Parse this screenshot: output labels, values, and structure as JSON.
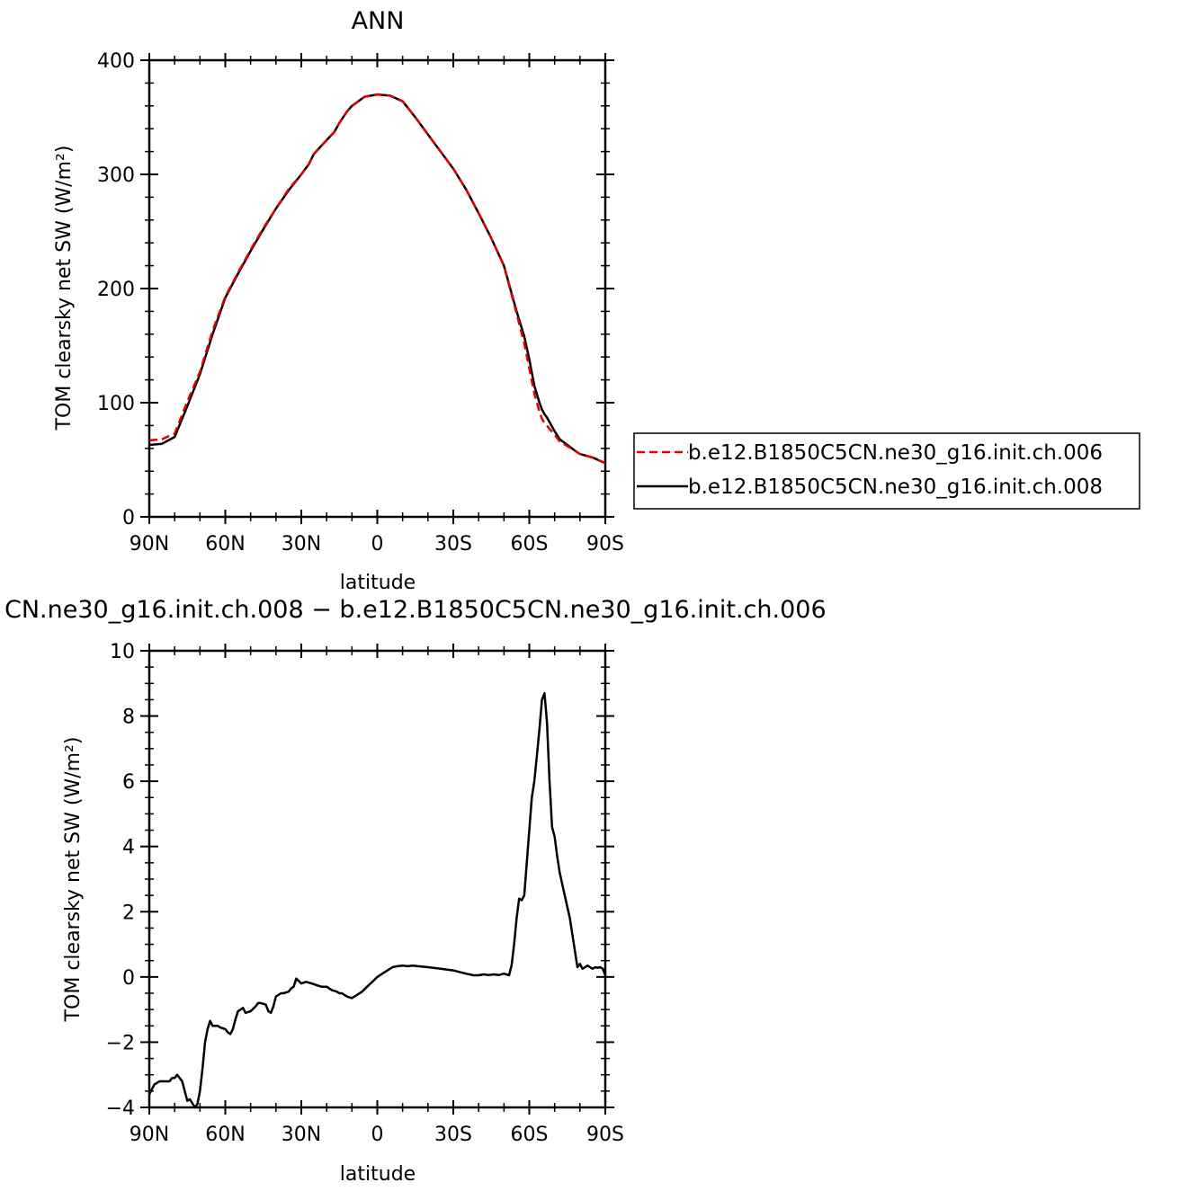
{
  "chart_data": [
    {
      "type": "line",
      "title": "ANN",
      "xlabel": "latitude",
      "ylabel": "TOM clearsky net SW (W/m²)",
      "xlim": [
        90,
        -90
      ],
      "ylim": [
        0,
        400
      ],
      "xticks": [
        {
          "value": 90,
          "label": "90N"
        },
        {
          "value": 60,
          "label": "60N"
        },
        {
          "value": 30,
          "label": "30N"
        },
        {
          "value": 0,
          "label": "0"
        },
        {
          "value": -30,
          "label": "30S"
        },
        {
          "value": -60,
          "label": "60S"
        },
        {
          "value": -90,
          "label": "90S"
        }
      ],
      "yticks": [
        {
          "value": 0,
          "label": "0"
        },
        {
          "value": 100,
          "label": "100"
        },
        {
          "value": 200,
          "label": "200"
        },
        {
          "value": 300,
          "label": "300"
        },
        {
          "value": 400,
          "label": "400"
        }
      ],
      "grid": false,
      "legend_position": "right",
      "series": [
        {
          "name": "b.e12.B1850C5CN.ne30_g16.init.ch.006",
          "color": "#e00000",
          "dash": "dashed",
          "x": [
            90,
            85,
            80,
            75,
            70,
            65,
            60,
            55,
            50,
            45,
            40,
            35,
            30,
            27,
            25,
            20,
            17,
            15,
            12,
            10,
            5,
            0,
            -5,
            -10,
            -15,
            -20,
            -25,
            -30,
            -35,
            -40,
            -45,
            -50,
            -55,
            -58,
            -60,
            -62,
            -64,
            -65,
            -66,
            -67,
            -68,
            -70,
            -72,
            -75,
            -78,
            -80,
            -85,
            -90
          ],
          "y": [
            67,
            68,
            73,
            101,
            127,
            163,
            193,
            214,
            234,
            253,
            270,
            287,
            300,
            309,
            318,
            330,
            337,
            345,
            355,
            360,
            368,
            370,
            369,
            364,
            350,
            335,
            320,
            305,
            287,
            266,
            244,
            220,
            178,
            152,
            130,
            108,
            92,
            86,
            82,
            80,
            77,
            72,
            66,
            62,
            58,
            55,
            52,
            47
          ]
        },
        {
          "name": "b.e12.B1850C5CN.ne30_g16.init.ch.008",
          "color": "#000000",
          "dash": "solid",
          "x": [
            90,
            85,
            80,
            75,
            70,
            65,
            60,
            55,
            50,
            45,
            40,
            35,
            30,
            27,
            25,
            20,
            17,
            15,
            12,
            10,
            5,
            0,
            -5,
            -10,
            -15,
            -20,
            -25,
            -30,
            -35,
            -40,
            -45,
            -50,
            -55,
            -58,
            -60,
            -62,
            -64,
            -65,
            -66,
            -67,
            -68,
            -70,
            -72,
            -75,
            -78,
            -80,
            -85,
            -90
          ],
          "y": [
            63,
            64,
            70,
            97,
            125,
            160,
            192,
            213,
            233,
            252,
            270,
            286,
            300,
            309,
            318,
            330,
            337,
            345,
            355,
            360,
            368,
            370,
            369,
            364,
            350,
            335,
            320,
            305,
            287,
            266,
            244,
            220,
            180,
            158,
            138,
            115,
            100,
            94,
            90,
            87,
            83,
            75,
            68,
            63,
            58,
            55,
            52,
            47
          ]
        }
      ]
    },
    {
      "type": "line",
      "title": "CN.ne30_g16.init.ch.008 − b.e12.B1850C5CN.ne30_g16.init.ch.006",
      "xlabel": "latitude",
      "ylabel": "TOM clearsky net SW (W/m²)",
      "xlim": [
        90,
        -90
      ],
      "ylim": [
        -4,
        10
      ],
      "xticks": [
        {
          "value": 90,
          "label": "90N"
        },
        {
          "value": 60,
          "label": "60N"
        },
        {
          "value": 30,
          "label": "30N"
        },
        {
          "value": 0,
          "label": "0"
        },
        {
          "value": -30,
          "label": "30S"
        },
        {
          "value": -60,
          "label": "60S"
        },
        {
          "value": -90,
          "label": "90S"
        }
      ],
      "yticks": [
        {
          "value": -4,
          "label": "−4"
        },
        {
          "value": -2,
          "label": "−2"
        },
        {
          "value": 0,
          "label": "0"
        },
        {
          "value": 2,
          "label": "2"
        },
        {
          "value": 4,
          "label": "4"
        },
        {
          "value": 6,
          "label": "6"
        },
        {
          "value": 8,
          "label": "8"
        },
        {
          "value": 10,
          "label": "10"
        }
      ],
      "grid": false,
      "series": [
        {
          "name": "",
          "color": "#000000",
          "dash": "solid",
          "x": [
            90,
            88,
            86,
            84,
            82,
            81,
            80,
            79,
            77,
            76,
            75,
            74,
            72,
            71,
            70,
            69,
            68,
            67,
            66,
            65,
            63,
            62,
            60,
            59,
            58,
            57,
            56,
            55,
            53,
            52,
            50,
            48,
            47,
            46,
            44,
            43,
            42,
            41,
            40,
            38,
            37,
            35,
            34,
            33,
            32,
            30,
            28,
            26,
            24,
            22,
            20,
            18,
            16,
            15,
            14,
            12,
            10,
            8,
            6,
            4,
            2,
            0,
            -2,
            -4,
            -6,
            -8,
            -10,
            -12,
            -14,
            -16,
            -20,
            -25,
            -30,
            -35,
            -38,
            -40,
            -42,
            -44,
            -46,
            -48,
            -50,
            -52,
            -53,
            -54,
            -55,
            -56,
            -57,
            -58,
            -59,
            -60,
            -61,
            -62,
            -63,
            -64,
            -65,
            -66,
            -67,
            -68,
            -69,
            -70,
            -71,
            -72,
            -74,
            -76,
            -78,
            -79,
            -80,
            -81,
            -82,
            -83,
            -84,
            -85,
            -86,
            -87,
            -88,
            -89,
            -90
          ],
          "y": [
            -3.6,
            -3.3,
            -3.2,
            -3.2,
            -3.2,
            -3.1,
            -3.1,
            -3.0,
            -3.2,
            -3.5,
            -3.8,
            -3.75,
            -4.0,
            -3.9,
            -3.5,
            -2.8,
            -2.0,
            -1.6,
            -1.35,
            -1.5,
            -1.5,
            -1.55,
            -1.6,
            -1.7,
            -1.75,
            -1.6,
            -1.3,
            -1.05,
            -0.95,
            -1.1,
            -1.05,
            -0.9,
            -0.8,
            -0.8,
            -0.85,
            -1.05,
            -1.1,
            -0.9,
            -0.6,
            -0.5,
            -0.5,
            -0.45,
            -0.35,
            -0.3,
            -0.05,
            -0.2,
            -0.15,
            -0.2,
            -0.25,
            -0.3,
            -0.3,
            -0.4,
            -0.45,
            -0.5,
            -0.5,
            -0.6,
            -0.65,
            -0.55,
            -0.45,
            -0.3,
            -0.15,
            0.0,
            0.1,
            0.2,
            0.3,
            0.33,
            0.35,
            0.33,
            0.35,
            0.33,
            0.3,
            0.25,
            0.2,
            0.1,
            0.05,
            0.05,
            0.08,
            0.06,
            0.08,
            0.06,
            0.1,
            0.05,
            0.35,
            1.0,
            1.8,
            2.4,
            2.35,
            2.5,
            3.5,
            4.5,
            5.5,
            6.0,
            6.8,
            7.6,
            8.5,
            8.7,
            7.8,
            6.0,
            4.6,
            4.3,
            3.7,
            3.2,
            2.5,
            1.8,
            0.8,
            0.3,
            0.4,
            0.25,
            0.3,
            0.35,
            0.3,
            0.25,
            0.3,
            0.28,
            0.3,
            0.25,
            0.05
          ]
        }
      ]
    }
  ]
}
